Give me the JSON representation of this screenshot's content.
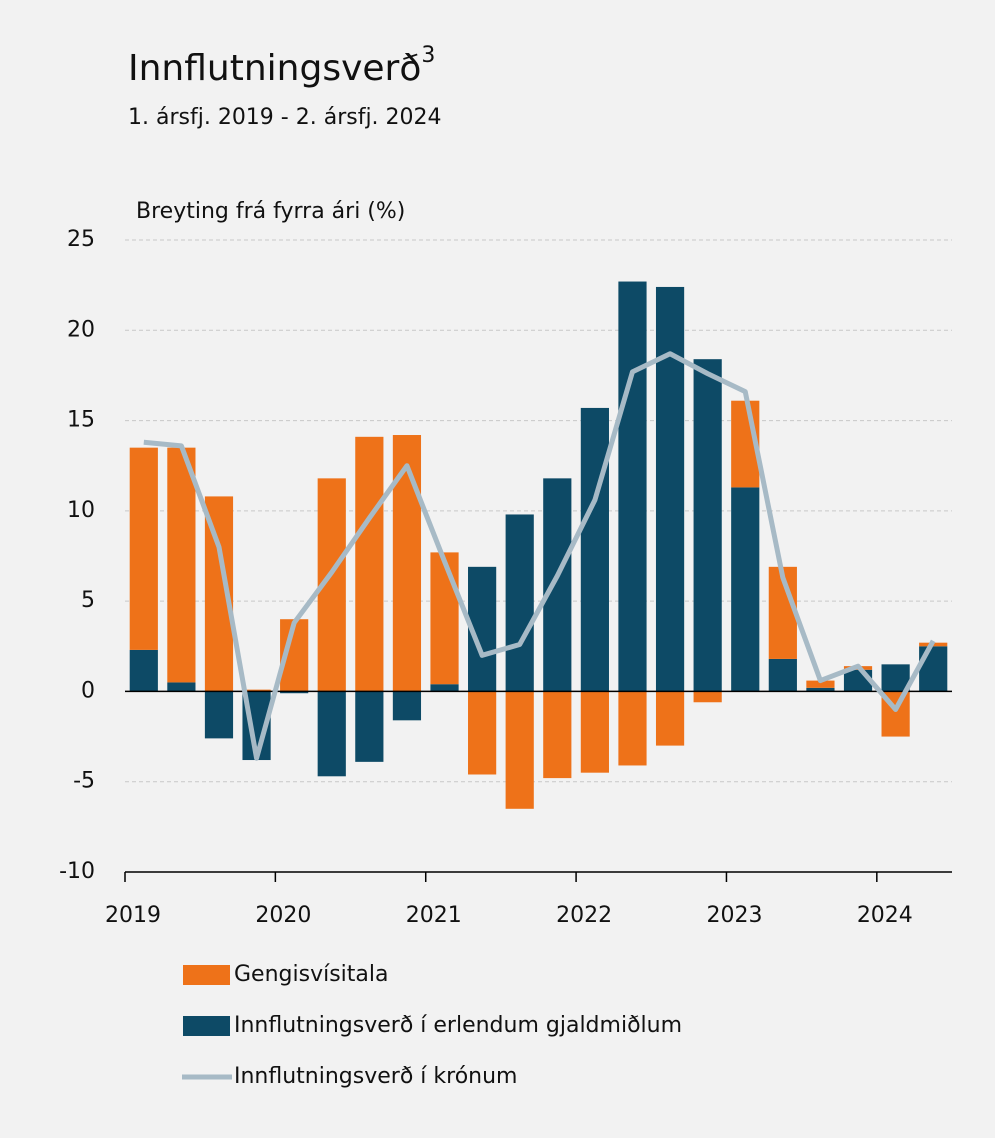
{
  "chart_data": {
    "type": "bar",
    "title": "Innflutningsverð",
    "title_superscript": "3",
    "subtitle": "1. ársfj. 2019 - 2. ársfj. 2024",
    "y_axis_label": "Breyting frá fyrra ári (%)",
    "x": [
      2019,
      2019.25,
      2019.5,
      2019.75,
      2020,
      2020.25,
      2020.5,
      2020.75,
      2021,
      2021.25,
      2021.5,
      2021.75,
      2022,
      2022.25,
      2022.5,
      2022.75,
      2023,
      2023.25,
      2023.5,
      2023.75,
      2024,
      2024.25
    ],
    "series": [
      {
        "name": "Gengisvísitala",
        "type": "bar",
        "color": "#ee7219",
        "values": [
          11.2,
          13.0,
          10.8,
          0.1,
          4.0,
          11.8,
          14.1,
          14.2,
          7.3,
          -4.6,
          -6.5,
          -4.8,
          -4.5,
          -4.1,
          -3.0,
          -0.6,
          4.8,
          5.1,
          0.4,
          0.2,
          -2.5,
          0.2
        ]
      },
      {
        "name": "Innflutningsverð í erlendum gjaldmiðlum",
        "type": "bar",
        "color": "#0d4a66",
        "values": [
          2.3,
          0.5,
          -2.6,
          -3.8,
          -0.1,
          -4.7,
          -3.9,
          -1.6,
          0.4,
          6.9,
          9.8,
          11.8,
          15.7,
          22.7,
          22.4,
          18.4,
          11.3,
          1.8,
          0.2,
          1.2,
          1.5,
          2.5
        ]
      },
      {
        "name": "Innflutningsverð í krónum",
        "type": "line",
        "color": "#a7bac6",
        "values": [
          13.8,
          13.6,
          8.0,
          -3.7,
          3.8,
          6.6,
          9.6,
          12.5,
          7.2,
          2.0,
          2.6,
          6.4,
          10.6,
          17.7,
          18.7,
          17.6,
          16.6,
          6.3,
          0.6,
          1.4,
          -1.0,
          2.8
        ]
      }
    ],
    "stacked": true,
    "xlim": [
      2019,
      2024.5
    ],
    "xticks": [
      2019,
      2020,
      2021,
      2022,
      2023,
      2024
    ],
    "ylim": [
      -10,
      25
    ],
    "yticks": [
      -10,
      -5,
      0,
      5,
      10,
      15,
      20,
      25
    ],
    "grid": true
  }
}
